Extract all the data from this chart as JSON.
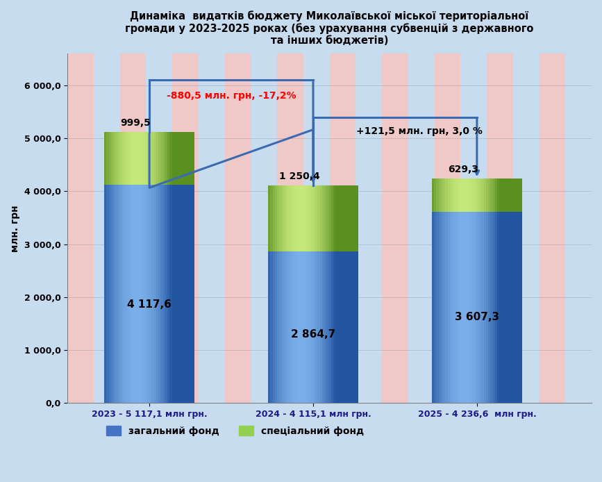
{
  "title_line1": "Динаміка  видатків бюджету Миколаївської міської територіальної",
  "title_line2": "громади у 2023-2025 роках (без урахування субвенцій з державного",
  "title_line3": "та інших бюджетів)",
  "categories": [
    "2023 - 5 117,1 млн грн.",
    "2024 - 4 115,1 млн грн.",
    "2025 - 4 236,6  млн грн."
  ],
  "general_fund": [
    4117.6,
    2864.7,
    3607.3
  ],
  "special_fund": [
    999.5,
    1250.4,
    629.3
  ],
  "general_labels": [
    "4 117,6",
    "2 864,7",
    "3 607,3"
  ],
  "special_labels": [
    "999,5",
    "1 250,4",
    "629,3"
  ],
  "ylabel": "млн. грн",
  "yticks": [
    0.0,
    1000.0,
    2000.0,
    3000.0,
    4000.0,
    5000.0,
    6000.0
  ],
  "ylim": [
    0,
    6600
  ],
  "bar_color_blue_main": "#4472C4",
  "bar_color_blue_light": "#7AAEE8",
  "bar_color_blue_dark": "#2255A0",
  "bar_color_green_main": "#92D050",
  "bar_color_green_light": "#C5E87A",
  "bar_color_green_dark": "#5A9020",
  "bar_width": 0.55,
  "annotation1_text": "-880,5 млн. грн, -17,2%",
  "annotation2_text": "+121,5 млн. грн, 3,0 %",
  "legend_blue": "загальний фонд",
  "legend_green": "спеціальний фонд",
  "bg_color": "#C8DCEF",
  "stripe_pink": "#F0C8C8",
  "stripe_blue": "#C8DCF0",
  "arrow_color": "#3A6AB0"
}
